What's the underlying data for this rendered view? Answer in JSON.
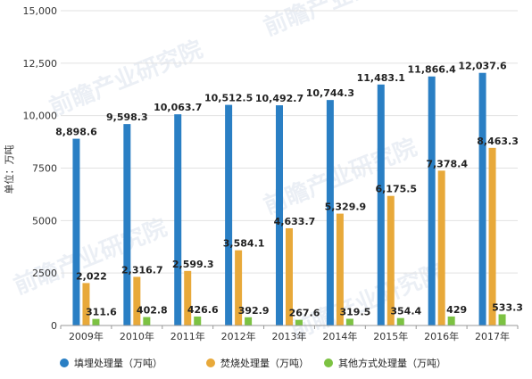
{
  "chart_data": {
    "type": "bar",
    "categories": [
      "2009年",
      "2010年",
      "2011年",
      "2012年",
      "2013年",
      "2014年",
      "2015年",
      "2016年",
      "2017年"
    ],
    "series": [
      {
        "name": "填埋处理量（万吨）",
        "color": "#2a7fc4",
        "values": [
          8898.6,
          9598.3,
          10063.7,
          10512.5,
          10492.7,
          10744.3,
          11483.1,
          11866.4,
          12037.6
        ],
        "labels": [
          "8,898.6",
          "9,598.3",
          "10,063.7",
          "10,512.5",
          "10,492.7",
          "10,744.3",
          "11,483.1",
          "11,866.4",
          "12,037.6"
        ]
      },
      {
        "name": "焚烧处理量（万吨）",
        "color": "#e8a93a",
        "values": [
          2022,
          2316.7,
          2599.3,
          3584.1,
          4633.7,
          5329.9,
          6175.5,
          7378.4,
          8463.3
        ],
        "labels": [
          "2,022",
          "2,316.7",
          "2,599.3",
          "3,584.1",
          "4,633.7",
          "5,329.9",
          "6,175.5",
          "7,378.4",
          "8,463.3"
        ]
      },
      {
        "name": "其他方式处理量（万吨）",
        "color": "#7cc242",
        "values": [
          311.6,
          402.8,
          426.6,
          392.9,
          267.6,
          319.5,
          354.4,
          429,
          533.3
        ],
        "labels": [
          "311.6",
          "402.8",
          "426.6",
          "392.9",
          "267.6",
          "319.5",
          "354.4",
          "429",
          "533.3"
        ]
      }
    ],
    "ylabel": "单位：万吨",
    "ylim": [
      0,
      15000
    ],
    "yticks": [
      0,
      2500,
      5000,
      7500,
      10000,
      12500,
      15000
    ],
    "ytick_labels": [
      "0",
      "2500",
      "5000",
      "7500",
      "10,000",
      "12,500",
      "15,000"
    ],
    "grid": true,
    "legend_position": "bottom",
    "watermark": "前瞻产业研究院"
  }
}
